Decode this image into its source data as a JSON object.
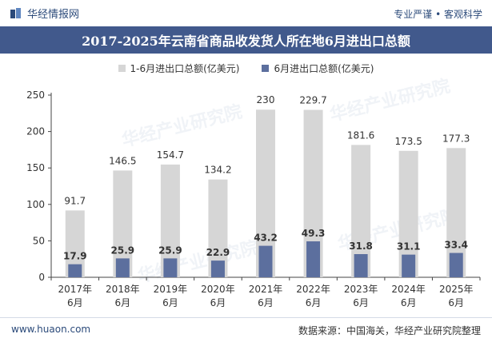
{
  "header": {
    "brand_name": "华经情报网",
    "slogan": "专业严谨 • 客观科学"
  },
  "footer": {
    "url": "www.huaon.com",
    "source": "数据来源：中国海关，华经产业研究院整理"
  },
  "watermark": {
    "text": "华经产业研究院",
    "url": "www.huaon.com"
  },
  "colors": {
    "title_band": "#41598c",
    "series_total": "#d6d6d6",
    "series_june": "#5c6f9e",
    "brand": "#2b4a7a"
  },
  "chart_data": {
    "type": "bar",
    "title": "2017-2025年云南省商品收发货人所在地6月进出口总额",
    "categories": [
      "2017年6月",
      "2018年6月",
      "2019年6月",
      "2020年6月",
      "2021年6月",
      "2022年6月",
      "2023年6月",
      "2024年6月",
      "2025年6月"
    ],
    "x_tick_lines": [
      [
        "2017年",
        "6月"
      ],
      [
        "2018年",
        "6月"
      ],
      [
        "2019年",
        "6月"
      ],
      [
        "2020年",
        "6月"
      ],
      [
        "2021年",
        "6月"
      ],
      [
        "2022年",
        "6月"
      ],
      [
        "2023年",
        "6月"
      ],
      [
        "2024年",
        "6月"
      ],
      [
        "2025年",
        "6月"
      ]
    ],
    "series": [
      {
        "name": "1-6月进出口总额(亿美元)",
        "values": [
          91.7,
          146.5,
          154.7,
          134.2,
          230,
          229.7,
          181.6,
          173.5,
          177.3
        ],
        "labels": [
          "91.7",
          "146.5",
          "154.7",
          "134.2",
          "230",
          "229.7",
          "181.6",
          "173.5",
          "177.3"
        ],
        "color": "#d6d6d6"
      },
      {
        "name": "6月进出口总额(亿美元)",
        "values": [
          17.9,
          25.9,
          25.9,
          22.9,
          43.2,
          49.3,
          31.8,
          31.1,
          33.4
        ],
        "labels": [
          "17.9",
          "25.9",
          "25.9",
          "22.9",
          "43.2",
          "49.3",
          "31.8",
          "31.1",
          "33.4"
        ],
        "color": "#5c6f9e"
      }
    ],
    "ylim": [
      0,
      250
    ],
    "y_ticks": [
      0,
      50,
      100,
      150,
      200,
      250
    ],
    "xlabel": "",
    "ylabel": "",
    "grid": false,
    "legend_position": "top-center"
  }
}
